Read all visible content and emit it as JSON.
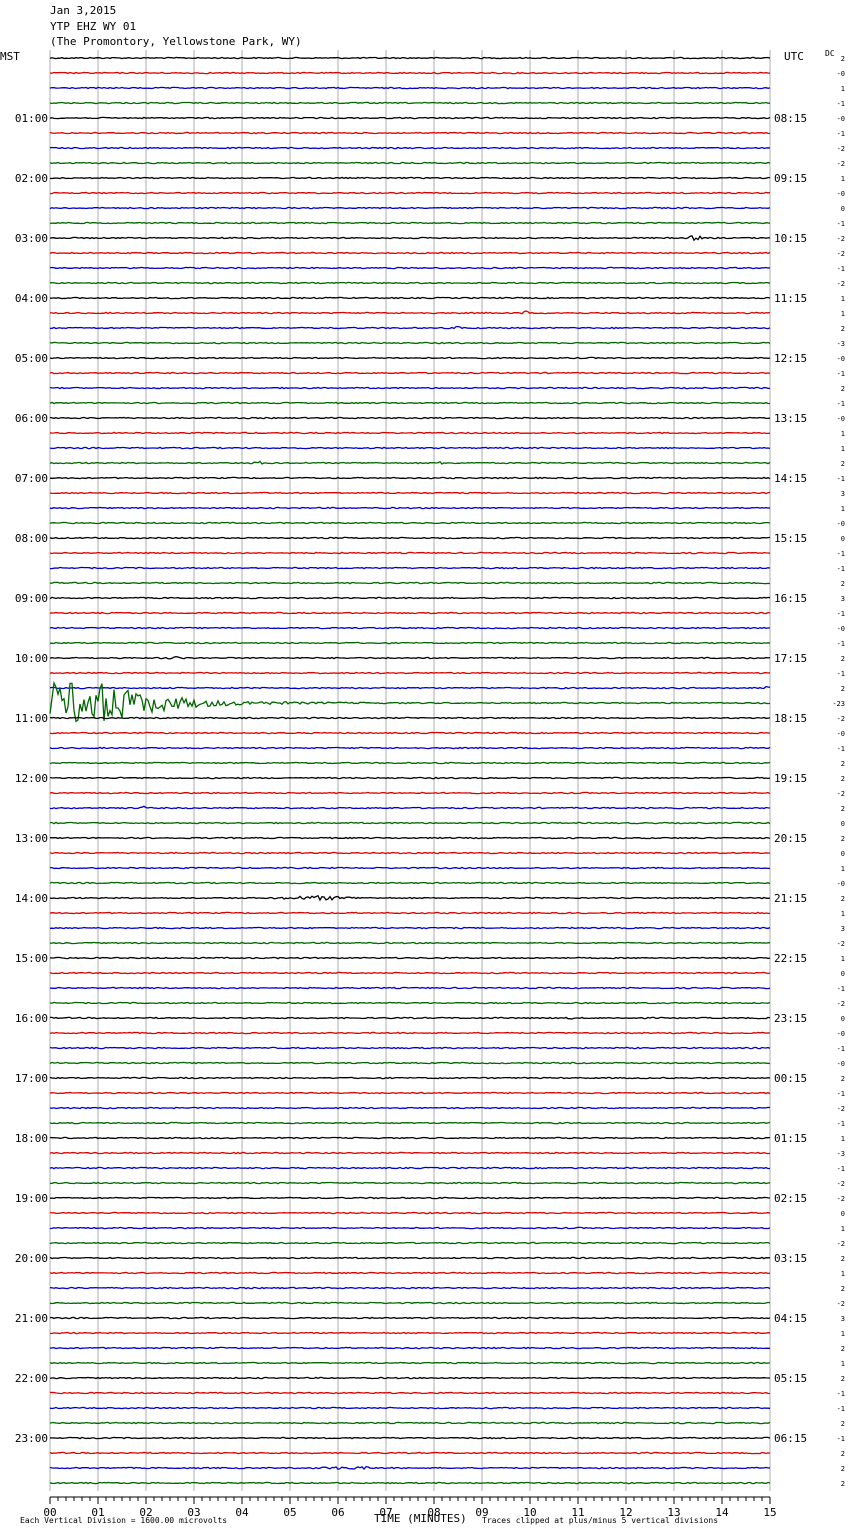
{
  "header": {
    "date": "Jan 3,2015",
    "station": "YTP EHZ WY 01",
    "location": "(The Promontory, Yellowstone Park, WY)"
  },
  "labels": {
    "left_tz": "MST",
    "right_tz": "UTC",
    "dc": "DC",
    "xlabel": "TIME (MINUTES)",
    "footer_left": "Each Vertical Division = 1600.00 microvolts",
    "footer_right": "Traces clipped at plus/minus 5 vertical divisions"
  },
  "colors": {
    "cycle": [
      "#000000",
      "#dd0000",
      "#0000cc",
      "#006600"
    ],
    "grid": "#9a9a9a"
  },
  "chart_data": {
    "type": "seismogram",
    "x_ticks": [
      "00",
      "01",
      "02",
      "03",
      "04",
      "05",
      "06",
      "07",
      "08",
      "09",
      "10",
      "11",
      "12",
      "13",
      "14",
      "15"
    ],
    "xlim": [
      0,
      15
    ],
    "traces_per_hour": 4,
    "left_hour_labels": [
      "01:00",
      "02:00",
      "03:00",
      "04:00",
      "05:00",
      "06:00",
      "07:00",
      "08:00",
      "09:00",
      "10:00",
      "11:00",
      "12:00",
      "13:00",
      "14:00",
      "15:00",
      "16:00",
      "17:00",
      "18:00",
      "19:00",
      "20:00",
      "21:00",
      "22:00",
      "23:00"
    ],
    "right_hour_labels": [
      "08:15",
      "09:15",
      "10:15",
      "11:15",
      "12:15",
      "13:15",
      "14:15",
      "15:15",
      "16:15",
      "17:15",
      "18:15",
      "19:15",
      "20:15",
      "21:15",
      "22:15",
      "23:15",
      "00:15",
      "01:15",
      "02:15",
      "03:15",
      "04:15",
      "05:15",
      "06:15"
    ],
    "dc_offsets": [
      "2",
      "-0",
      "1",
      "-1",
      "-0",
      "-1",
      "-2",
      "-2",
      "1",
      "-0",
      "0",
      "-1",
      "-2",
      "-2",
      "-1",
      "-2",
      "1",
      "1",
      "2",
      "-3",
      "-0",
      "-1",
      "2",
      "-1",
      "-0",
      "1",
      "1",
      "2",
      "-1",
      "3",
      "1",
      "-0",
      "0",
      "-1",
      "-1",
      "2",
      "3",
      "-1",
      "-0",
      "-1",
      "2",
      "-1",
      "2",
      "-23",
      "-2",
      "-0",
      "-1",
      "2",
      "2",
      "-2",
      "2",
      "0",
      "2",
      "0",
      "1",
      "-0",
      "2",
      "1",
      "3",
      "-2",
      "1",
      "0",
      "-1",
      "-2",
      "0",
      "-0",
      "-1",
      "-0",
      "2",
      "-1",
      "-2",
      "-1",
      "1",
      "-3",
      "-1",
      "-2",
      "-2",
      "0",
      "1",
      "-2",
      "2",
      "1",
      "2",
      "-2",
      "3",
      "1",
      "2",
      "1",
      "2",
      "-1",
      "-1",
      "2",
      "-1",
      "2",
      "2",
      "2"
    ],
    "events": [
      {
        "trace": 12,
        "minute": 13.45,
        "amp": 2.2,
        "dur": 0.45
      },
      {
        "trace": 17,
        "minute": 9.9,
        "amp": 2.0,
        "dur": 0.2
      },
      {
        "trace": 18,
        "minute": 8.55,
        "amp": 2.0,
        "dur": 0.3
      },
      {
        "trace": 27,
        "minute": 4.4,
        "amp": 1.2,
        "dur": 0.5
      },
      {
        "trace": 27,
        "minute": 8.15,
        "amp": 1.0,
        "dur": 0.3
      },
      {
        "trace": 40,
        "minute": 2.6,
        "amp": 1.0,
        "dur": 0.6
      },
      {
        "trace": 42,
        "minute": 14.95,
        "amp": 12.0,
        "dur": 0.1
      },
      {
        "trace": 43,
        "minute": 0.0,
        "amp": 20.0,
        "dur": 7.5,
        "quake": true
      },
      {
        "trace": 50,
        "minute": 1.95,
        "amp": 1.5,
        "dur": 0.2
      },
      {
        "trace": 56,
        "minute": 5.6,
        "amp": 1.8,
        "dur": 2.0
      },
      {
        "trace": 64,
        "minute": 10.85,
        "amp": 1.0,
        "dur": 0.2
      },
      {
        "trace": 94,
        "minute": 6.2,
        "amp": 1.2,
        "dur": 1.5
      }
    ]
  }
}
